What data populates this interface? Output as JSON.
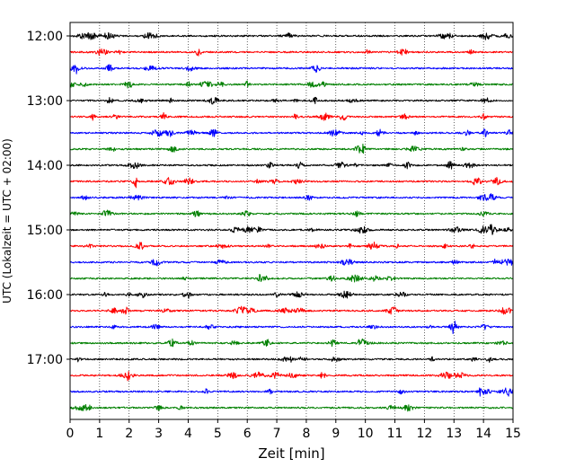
{
  "chart_data": {
    "type": "line",
    "title": "",
    "xlabel": "Zeit  [min]",
    "ylabel": "UTC (Lokalzeit = UTC + 02:00)",
    "xlim": [
      0,
      15
    ],
    "x_ticks": [
      "0",
      "1",
      "2",
      "3",
      "4",
      "5",
      "6",
      "7",
      "8",
      "9",
      "10",
      "11",
      "12",
      "13",
      "14",
      "15"
    ],
    "y_ticks": [
      "12:00",
      "13:00",
      "14:00",
      "15:00",
      "16:00",
      "17:00"
    ],
    "trace_interval_min": 15,
    "trace_start": "12:00",
    "trace_end": "17:45",
    "trace_colors": [
      "#000000",
      "#ff0000",
      "#0000ff",
      "#008000"
    ],
    "vertical_grid": true,
    "grid_style": "dotted",
    "legend": "none"
  }
}
